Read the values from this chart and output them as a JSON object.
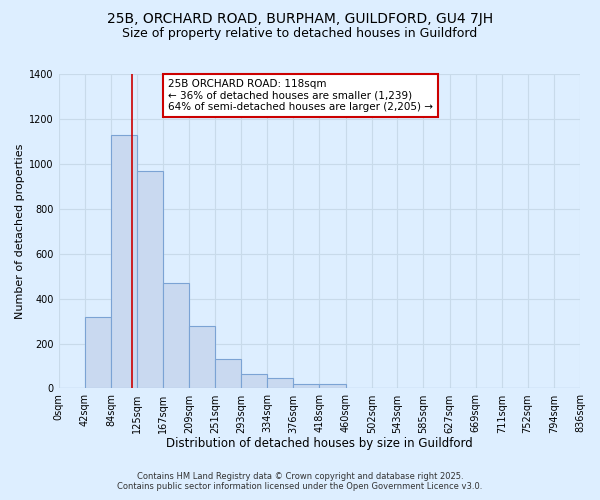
{
  "title": "25B, ORCHARD ROAD, BURPHAM, GUILDFORD, GU4 7JH",
  "subtitle": "Size of property relative to detached houses in Guildford",
  "xlabel": "Distribution of detached houses by size in Guildford",
  "ylabel": "Number of detached properties",
  "bar_values": [
    0,
    320,
    1130,
    970,
    470,
    280,
    130,
    65,
    45,
    20,
    20,
    0,
    0,
    0,
    0,
    0,
    0,
    0,
    0,
    0
  ],
  "bin_edges": [
    0,
    42,
    84,
    125,
    167,
    209,
    251,
    293,
    334,
    376,
    418,
    460,
    502,
    543,
    585,
    627,
    669,
    711,
    752,
    794,
    836
  ],
  "tick_labels": [
    "0sqm",
    "42sqm",
    "84sqm",
    "125sqm",
    "167sqm",
    "209sqm",
    "251sqm",
    "293sqm",
    "334sqm",
    "376sqm",
    "418sqm",
    "460sqm",
    "502sqm",
    "543sqm",
    "585sqm",
    "627sqm",
    "669sqm",
    "711sqm",
    "752sqm",
    "794sqm",
    "836sqm"
  ],
  "bar_facecolor": "#c9d9f0",
  "bar_edgecolor": "#7ba3d4",
  "bar_linewidth": 0.8,
  "vline_x": 118,
  "vline_color": "#cc0000",
  "vline_linewidth": 1.2,
  "annotation_title": "25B ORCHARD ROAD: 118sqm",
  "annotation_line1": "← 36% of detached houses are smaller (1,239)",
  "annotation_line2": "64% of semi-detached houses are larger (2,205) →",
  "annotation_box_color": "#cc0000",
  "annotation_box_facecolor": "#ffffff",
  "ylim": [
    0,
    1400
  ],
  "xlim": [
    0,
    836
  ],
  "background_color": "#ddeeff",
  "plot_background": "#ddeeff",
  "grid_color": "#c8daea",
  "footnote1": "Contains HM Land Registry data © Crown copyright and database right 2025.",
  "footnote2": "Contains public sector information licensed under the Open Government Licence v3.0.",
  "title_fontsize": 10,
  "subtitle_fontsize": 9,
  "xlabel_fontsize": 8.5,
  "ylabel_fontsize": 8,
  "tick_fontsize": 7,
  "annotation_fontsize": 7.5,
  "footnote_fontsize": 6
}
